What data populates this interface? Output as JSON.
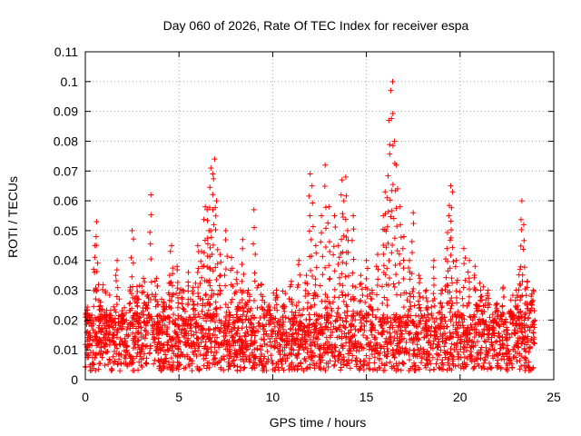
{
  "chart_data": {
    "type": "scatter",
    "title": "Day 060 of 2026, Rate Of TEC Index for receiver espa",
    "xlabel": "GPS time / hours",
    "ylabel": "ROTI / TECUs",
    "xlim": [
      0,
      25
    ],
    "ylim": [
      0,
      0.11
    ],
    "x_ticks": [
      0,
      5,
      10,
      15,
      20,
      25
    ],
    "x_tick_labels": [
      "0",
      "5",
      "10",
      "15",
      "20",
      "25"
    ],
    "y_ticks": [
      0,
      0.01,
      0.02,
      0.03,
      0.04,
      0.05,
      0.06,
      0.07,
      0.08,
      0.09,
      0.1,
      0.11
    ],
    "y_tick_labels": [
      "0",
      "0.01",
      "0.02",
      "0.03",
      "0.04",
      "0.05",
      "0.06",
      "0.07",
      "0.08",
      "0.09",
      "0.1",
      "0.11"
    ],
    "grid": true,
    "marker": "+",
    "color": "#ff0000",
    "x_range_of_data": [
      0,
      24
    ],
    "baseline_band": [
      0.003,
      0.022
    ],
    "series": [
      {
        "name": "ROTI",
        "x": [
          0.1,
          0.3,
          0.5,
          0.6,
          0.8,
          1.1,
          1.4,
          1.7,
          2.0,
          2.4,
          2.5,
          2.8,
          3.1,
          3.3,
          3.5,
          3.8,
          4.2,
          4.5,
          4.6,
          4.9,
          5.2,
          5.5,
          5.8,
          6.0,
          6.2,
          6.4,
          6.5,
          6.6,
          6.7,
          6.8,
          6.9,
          7.0,
          7.2,
          7.5,
          7.8,
          8.1,
          8.4,
          8.7,
          9.0,
          9.4,
          9.8,
          10.2,
          10.6,
          11.0,
          11.4,
          11.8,
          12.0,
          12.1,
          12.3,
          12.6,
          12.8,
          13.0,
          13.3,
          13.5,
          13.7,
          13.8,
          13.9,
          14.0,
          14.3,
          14.7,
          15.0,
          15.3,
          15.6,
          15.9,
          16.0,
          16.1,
          16.2,
          16.3,
          16.4,
          16.5,
          16.6,
          16.8,
          17.0,
          17.3,
          17.5,
          17.8,
          18.2,
          18.6,
          19.0,
          19.3,
          19.4,
          19.5,
          19.6,
          19.8,
          20.2,
          20.5,
          20.8,
          21.1,
          21.5,
          21.9,
          22.3,
          22.7,
          23.0,
          23.2,
          23.3,
          23.4,
          23.6,
          23.8,
          23.9
        ],
        "y": [
          0.022,
          0.019,
          0.045,
          0.053,
          0.026,
          0.021,
          0.018,
          0.04,
          0.02,
          0.031,
          0.05,
          0.027,
          0.034,
          0.028,
          0.062,
          0.034,
          0.025,
          0.035,
          0.045,
          0.038,
          0.03,
          0.036,
          0.025,
          0.045,
          0.043,
          0.058,
          0.057,
          0.05,
          0.071,
          0.069,
          0.074,
          0.06,
          0.042,
          0.05,
          0.041,
          0.036,
          0.047,
          0.03,
          0.057,
          0.032,
          0.025,
          0.03,
          0.025,
          0.033,
          0.04,
          0.035,
          0.069,
          0.065,
          0.045,
          0.055,
          0.072,
          0.058,
          0.055,
          0.045,
          0.067,
          0.06,
          0.068,
          0.05,
          0.055,
          0.035,
          0.04,
          0.03,
          0.042,
          0.055,
          0.063,
          0.061,
          0.087,
          0.097,
          0.1,
          0.08,
          0.072,
          0.058,
          0.048,
          0.04,
          0.056,
          0.035,
          0.03,
          0.04,
          0.03,
          0.044,
          0.055,
          0.065,
          0.063,
          0.04,
          0.044,
          0.04,
          0.038,
          0.03,
          0.03,
          0.025,
          0.031,
          0.023,
          0.03,
          0.037,
          0.06,
          0.052,
          0.033,
          0.028,
          0.03
        ]
      }
    ]
  }
}
